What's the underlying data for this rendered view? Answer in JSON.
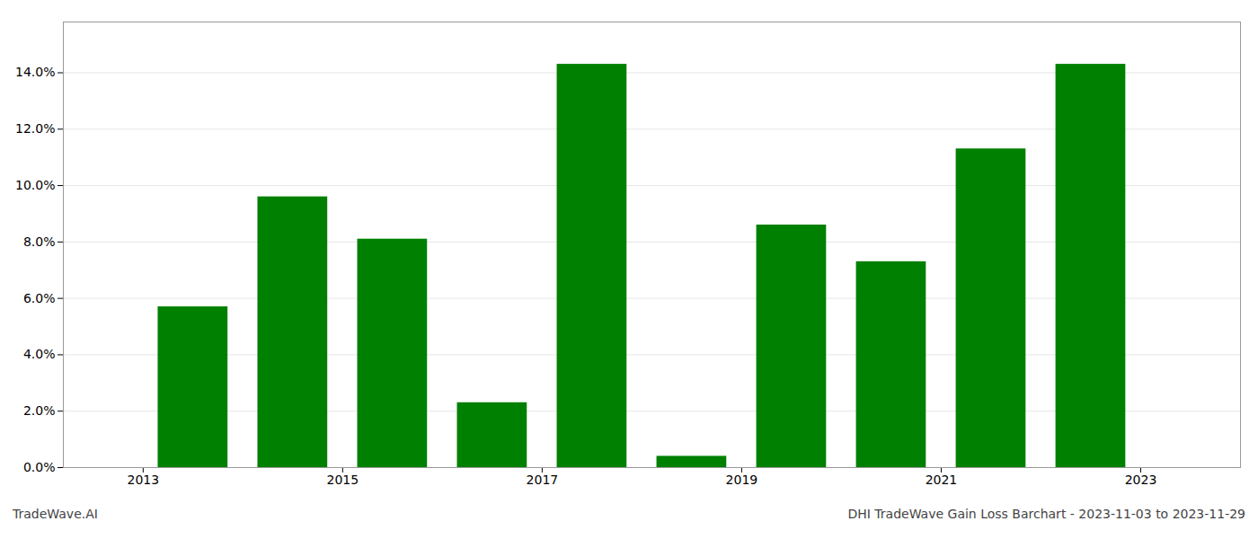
{
  "chart_data": {
    "type": "bar",
    "x": [
      2013,
      2014,
      2015,
      2016,
      2017,
      2018,
      2019,
      2020,
      2021,
      2022
    ],
    "values": [
      0.057,
      0.096,
      0.081,
      0.023,
      0.143,
      0.004,
      0.086,
      0.073,
      0.113,
      0.143
    ],
    "color": "#008000",
    "xlim": [
      2011.7,
      2023.5
    ],
    "xticks": [
      {
        "value": 2012.5,
        "label": "2013"
      },
      {
        "value": 2014.5,
        "label": "2015"
      },
      {
        "value": 2016.5,
        "label": "2017"
      },
      {
        "value": 2018.5,
        "label": "2019"
      },
      {
        "value": 2020.5,
        "label": "2021"
      },
      {
        "value": 2022.5,
        "label": "2023"
      }
    ],
    "ylim": [
      0,
      0.158
    ],
    "yticks": [
      {
        "value": 0.0,
        "label": "0.0%"
      },
      {
        "value": 0.02,
        "label": "2.0%"
      },
      {
        "value": 0.04,
        "label": "4.0%"
      },
      {
        "value": 0.06,
        "label": "6.0%"
      },
      {
        "value": 0.08,
        "label": "8.0%"
      },
      {
        "value": 0.1,
        "label": "10.0%"
      },
      {
        "value": 0.12,
        "label": "12.0%"
      },
      {
        "value": 0.14,
        "label": "14.0%"
      }
    ],
    "grid": true,
    "annotations": [
      "TradeWave.AI",
      "DHI TradeWave Gain Loss Barchart - 2023-11-03 to 2023-11-29"
    ]
  }
}
